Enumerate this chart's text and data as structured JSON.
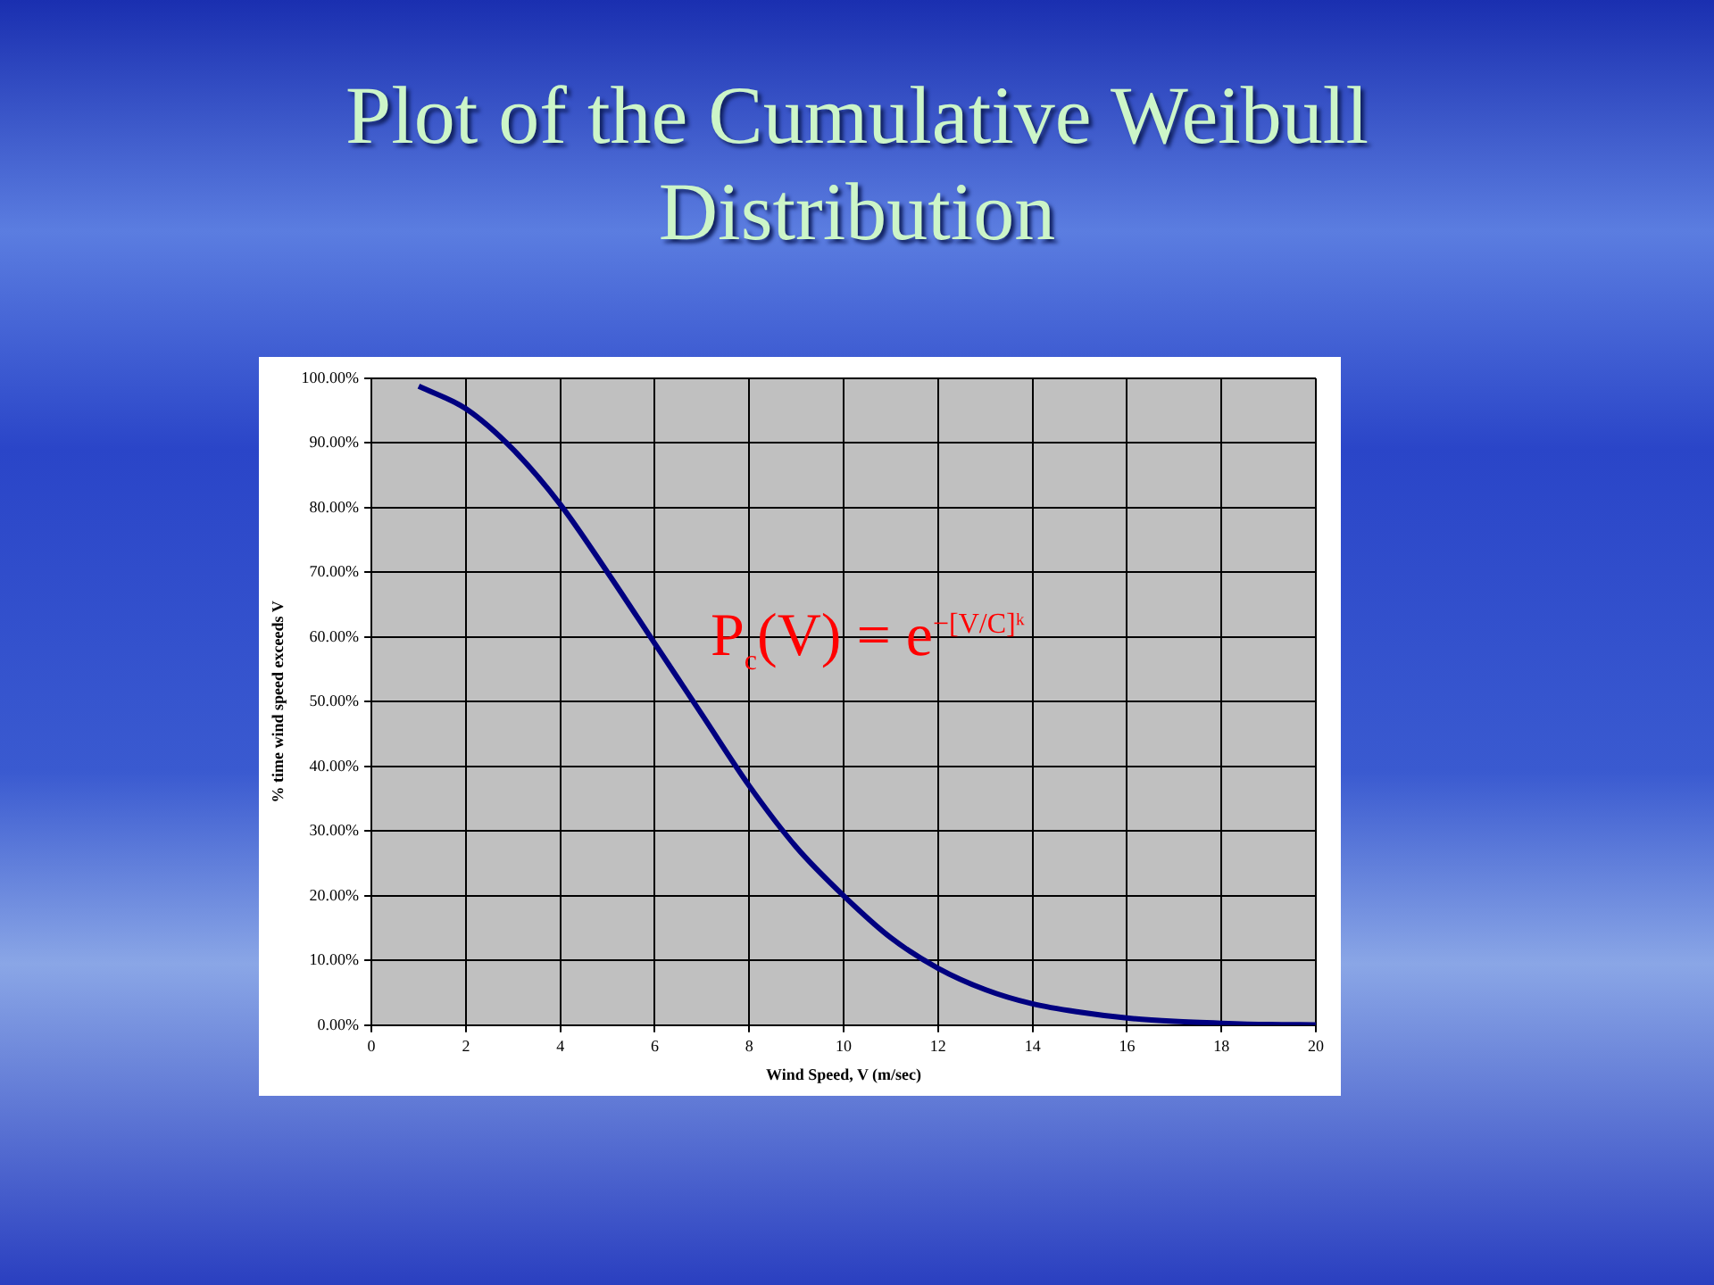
{
  "chart_data": {
    "type": "line",
    "title": "Plot of the Cumulative Weibull Distribution",
    "xlabel": "Wind Speed, V (m/sec)",
    "ylabel": "% time wind speed exceeds V",
    "annotations": [
      "P$_{c}$(V) = e$^{−[V/C]ᵏ}$"
    ],
    "x": [
      1,
      2,
      3,
      4,
      5,
      6,
      7,
      8,
      9,
      10,
      11,
      12,
      13,
      14,
      15,
      16,
      17,
      18,
      19,
      20
    ],
    "series": [
      {
        "color": "#000080",
        "values": [
          98.8,
          95.3,
          89,
          80.5,
          70,
          59,
          48,
          37,
          27.5,
          20,
          13.5,
          8.8,
          5.5,
          3.3,
          2,
          1.1,
          0.6,
          0.3,
          0.1,
          0.05
        ]
      }
    ],
    "xlim": [
      0,
      20
    ],
    "xticks": [
      0,
      2,
      4,
      6,
      8,
      10,
      12,
      14,
      16,
      18,
      20
    ],
    "ylim": [
      0,
      100
    ],
    "yticks": [
      {
        "value": 0,
        "label": "0.00%"
      },
      {
        "value": 10,
        "label": "10.00%"
      },
      {
        "value": 20,
        "label": "20.00%"
      },
      {
        "value": 30,
        "label": "30.00%"
      },
      {
        "value": 40,
        "label": "40.00%"
      },
      {
        "value": 50,
        "label": "50.00%"
      },
      {
        "value": 60,
        "label": "60.00%"
      },
      {
        "value": 70,
        "label": "70.00%"
      },
      {
        "value": 80,
        "label": "80.00%"
      },
      {
        "value": 90,
        "label": "90.00%"
      },
      {
        "value": 100,
        "label": "100.00%"
      }
    ],
    "grid": true,
    "legend": false,
    "marker": "none",
    "line_style": "solid"
  }
}
